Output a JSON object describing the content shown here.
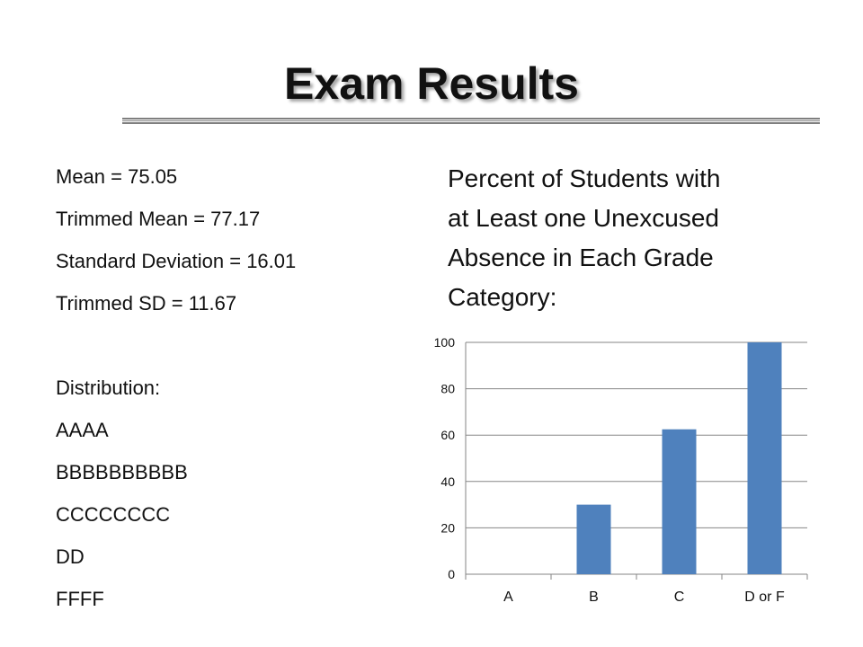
{
  "title": "Exam Results",
  "stats": {
    "lines": [
      "Mean = 75.05",
      "Trimmed Mean = 77.17",
      "Standard Deviation = 16.01",
      "Trimmed SD = 11.67"
    ],
    "distribution_label": "Distribution:",
    "distribution": [
      "AAAA",
      "BBBBBBBBBB",
      "CCCCCCCC",
      "DD",
      "FFFF"
    ]
  },
  "chart_heading": {
    "lines": [
      "Percent of Students with",
      "at Least one Unexcused",
      "Absence in Each Grade",
      "Category:"
    ]
  },
  "chart_data": {
    "type": "bar",
    "categories": [
      "A",
      "B",
      "C",
      "D or F"
    ],
    "values": [
      0,
      30,
      62.5,
      100
    ],
    "ylim": [
      0,
      100
    ],
    "yticks": [
      0,
      20,
      40,
      60,
      80,
      100
    ],
    "grid": true,
    "bar_color": "#4f81bd",
    "legend": "none"
  }
}
